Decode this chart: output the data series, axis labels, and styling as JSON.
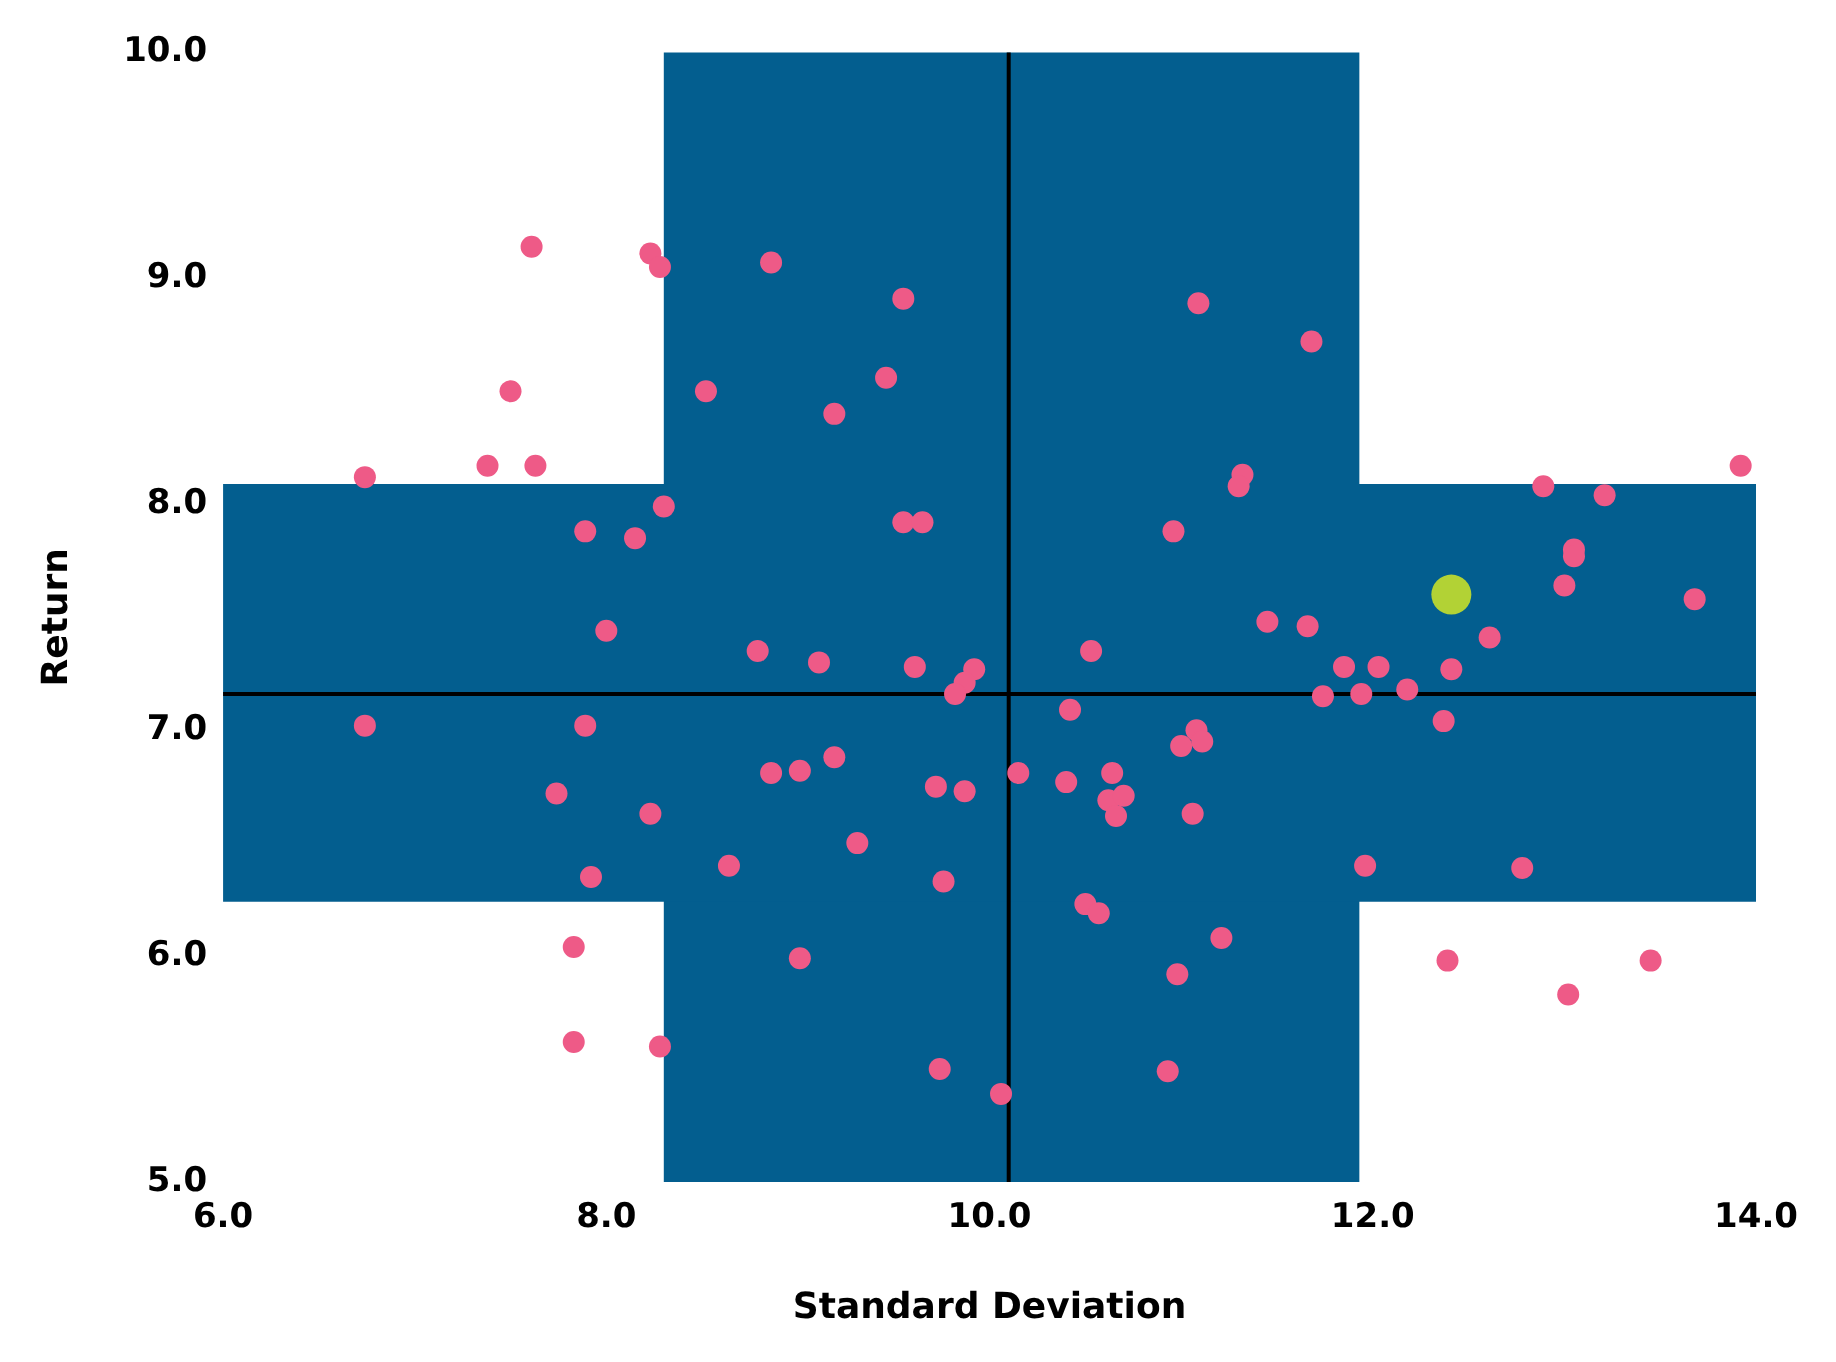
{
  "chart_data": {
    "type": "scatter",
    "xlabel": "Standard Deviation",
    "ylabel": "Return",
    "xlim": [
      6,
      14
    ],
    "ylim": [
      5,
      10
    ],
    "xticks": [
      {
        "value": 6,
        "label": "6.0"
      },
      {
        "value": 8,
        "label": "8.0"
      },
      {
        "value": 10,
        "label": "10.0"
      },
      {
        "value": 12,
        "label": "12.0"
      },
      {
        "value": 14,
        "label": "14.0"
      }
    ],
    "yticks": [
      {
        "value": 5,
        "label": "5.0"
      },
      {
        "value": 6,
        "label": "6.0"
      },
      {
        "value": 7,
        "label": "7.0"
      },
      {
        "value": 8,
        "label": "8.0"
      },
      {
        "value": 9,
        "label": "9.0"
      },
      {
        "value": 10,
        "label": "10.0"
      }
    ],
    "grid": false,
    "legend": false,
    "marker": "circle",
    "bands": [
      {
        "axis": "x",
        "from": 8.3,
        "to": 11.93,
        "color": "#035e8f"
      },
      {
        "axis": "y",
        "from": 6.24,
        "to": 8.09,
        "color": "#035e8f"
      }
    ],
    "ref_lines": [
      {
        "axis": "x",
        "value": 10.1,
        "color": "#000000"
      },
      {
        "axis": "y",
        "value": 7.16,
        "color": "#000000"
      }
    ],
    "series": [
      {
        "color": "#ee5a87",
        "x": [
          6.74,
          6.74,
          7.61,
          7.5,
          7.38,
          7.63,
          8.23,
          8.28,
          8.86,
          9.55,
          8.52,
          9.46,
          9.19,
          7.89,
          8.15,
          8.3,
          9.55,
          9.65,
          8.0,
          8.79,
          9.11,
          9.61,
          9.92,
          9.87,
          9.82,
          7.89,
          7.74,
          8.23,
          7.92,
          8.64,
          8.86,
          9.01,
          9.19,
          9.72,
          9.87,
          9.31,
          9.76,
          7.83,
          7.83,
          8.28,
          9.01,
          9.74,
          10.06,
          11.09,
          11.68,
          11.32,
          11.3,
          10.96,
          11.45,
          11.66,
          10.53,
          11.85,
          12.03,
          11.74,
          11.94,
          12.18,
          12.41,
          12.61,
          12.37,
          10.42,
          11.08,
          11.11,
          11.0,
          10.15,
          10.64,
          10.4,
          10.62,
          10.7,
          10.66,
          11.06,
          10.5,
          10.57,
          11.21,
          10.98,
          10.93,
          11.96,
          12.78,
          12.39,
          13.02,
          13.45,
          12.89,
          13.21,
          13.05,
          13.05,
          13.0,
          13.68,
          13.92
        ],
        "values": [
          8.12,
          7.02,
          9.14,
          8.5,
          8.17,
          8.17,
          9.11,
          9.05,
          9.07,
          8.91,
          8.5,
          8.56,
          8.4,
          7.88,
          7.85,
          7.99,
          7.92,
          7.92,
          7.44,
          7.35,
          7.3,
          7.28,
          7.27,
          7.21,
          7.16,
          7.02,
          6.72,
          6.63,
          6.35,
          6.4,
          6.81,
          6.82,
          6.88,
          6.75,
          6.73,
          6.5,
          6.33,
          6.04,
          5.62,
          5.6,
          5.99,
          5.5,
          5.39,
          8.89,
          8.72,
          8.13,
          8.08,
          7.88,
          7.48,
          7.46,
          7.35,
          7.28,
          7.28,
          7.15,
          7.16,
          7.18,
          7.27,
          7.41,
          7.04,
          7.09,
          7.0,
          6.95,
          6.93,
          6.81,
          6.81,
          6.77,
          6.69,
          6.71,
          6.62,
          6.63,
          6.23,
          6.19,
          6.08,
          5.92,
          5.49,
          6.4,
          6.39,
          5.98,
          5.83,
          5.98,
          8.08,
          8.04,
          7.8,
          7.77,
          7.64,
          7.58,
          8.17
        ]
      },
      {
        "color": "#b2d235",
        "x": [
          12.41
        ],
        "values": [
          7.6
        ]
      }
    ]
  }
}
